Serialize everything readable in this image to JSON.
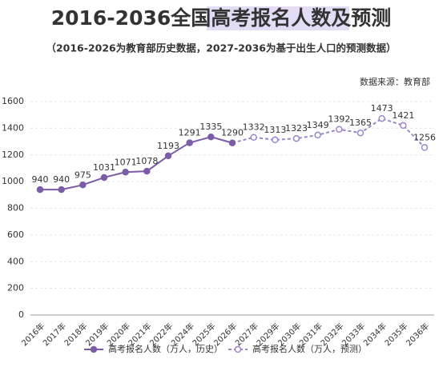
{
  "chart_data": {
    "type": "line",
    "title": "2016-2036全国高考报名人数及预测",
    "subtitle": "（2016-2026为教育部历史数据，2027-2036为基于出生人口的预测数据）",
    "source": "数据来源：教育部",
    "categories": [
      "2016年",
      "2017年",
      "2018年",
      "2019年",
      "2020年",
      "2021年",
      "2022年",
      "2024年",
      "2025年",
      "2026年",
      "2027年",
      "2029年",
      "2030年",
      "2031年",
      "2032年",
      "2033年",
      "2034年",
      "2035年",
      "2036年"
    ],
    "series": [
      {
        "name": "高考报名人数（万人，历史）",
        "color": "#7a5ca8",
        "dashed": false,
        "filled_markers": true,
        "values": [
          940,
          940,
          975,
          1031,
          1071,
          1078,
          1193,
          1291,
          1335,
          1290,
          null,
          null,
          null,
          null,
          null,
          null,
          null,
          null,
          null
        ]
      },
      {
        "name": "高考报名人数（万人，预测）",
        "color": "#9a88c4",
        "dashed": true,
        "filled_markers": false,
        "values": [
          null,
          null,
          null,
          null,
          null,
          null,
          null,
          null,
          null,
          1290,
          1332,
          1313,
          1323,
          1349,
          1392,
          1365,
          1473,
          1421,
          1256
        ]
      }
    ],
    "ylim": [
      0,
      1600
    ],
    "yticks": [
      0,
      200,
      400,
      600,
      800,
      1000,
      1200,
      1400,
      1600
    ],
    "grid": true
  }
}
